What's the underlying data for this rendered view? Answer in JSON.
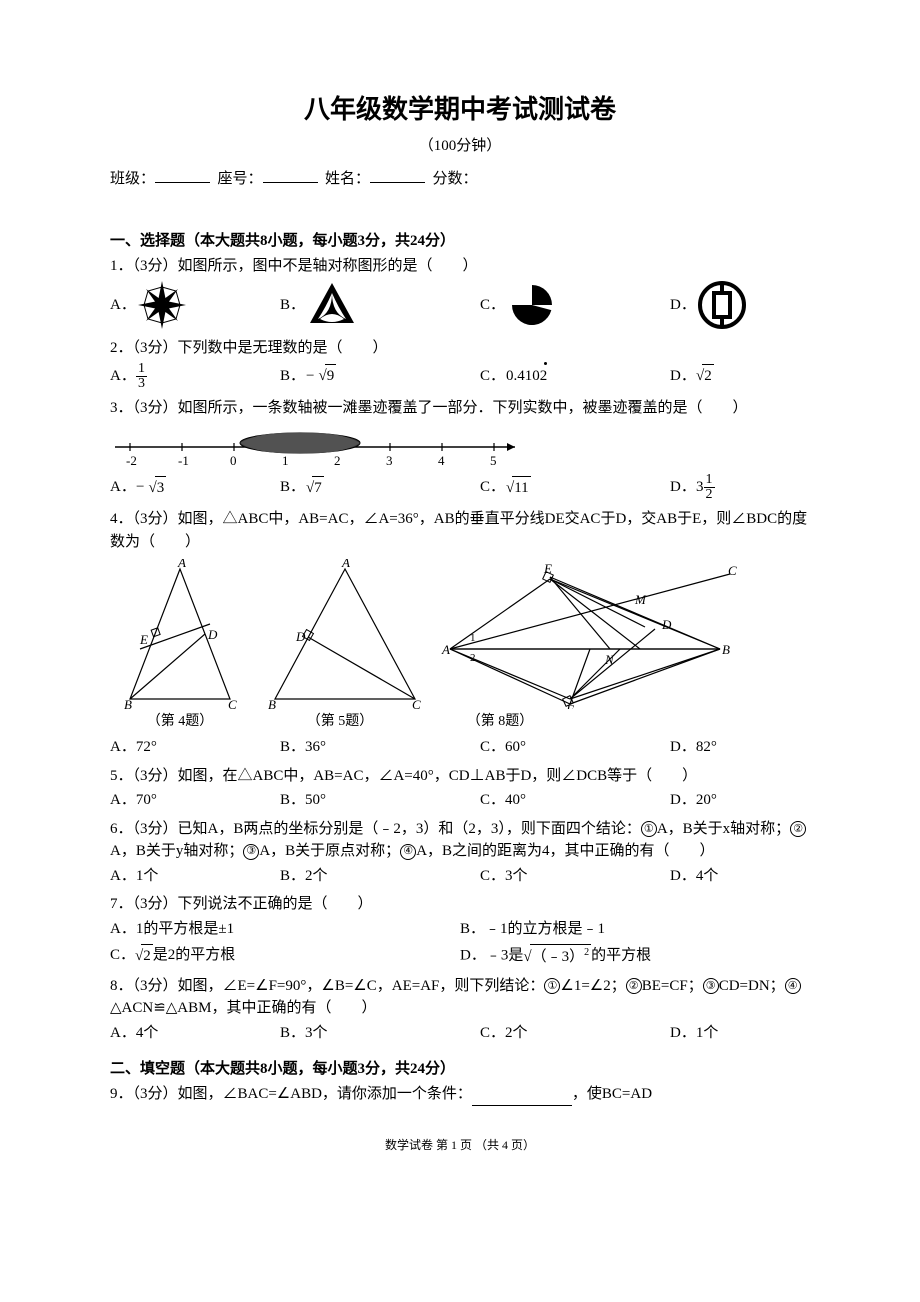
{
  "title": "八年级数学期中考试测试卷",
  "duration": "（100分钟）",
  "info_labels": {
    "class": "班级：",
    "seat": "座号：",
    "name": "姓名：",
    "score": "分数："
  },
  "section1": {
    "header": "一、选择题（本大题共8小题，每小题3分，共24分）",
    "q1": {
      "text": "1．（3分）如图所示，图中不是轴对称图形的是（　　）",
      "A": "A．",
      "B": "B．",
      "C": "C．",
      "D": "D．"
    },
    "q2": {
      "text": "2．（3分）下列数中是无理数的是（　　）",
      "A": "A．",
      "B": "B．",
      "C": "C．",
      "D": "D．",
      "optA": "1/3",
      "optB_pre": "−",
      "optB_rad": "9",
      "optC_pre": "0.410",
      "optC_rep": "2",
      "optD_rad": "2"
    },
    "q3": {
      "text": "3．（3分）如图所示，一条数轴被一滩墨迹覆盖了一部分．下列实数中，被墨迹覆盖的是（　　）",
      "ticks": [
        "-2",
        "-1",
        "0",
        "1",
        "2",
        "3",
        "4",
        "5"
      ],
      "A": "A．",
      "B": "B．",
      "C": "C．",
      "D": "D．",
      "optA_pre": "−",
      "optA_rad": "3",
      "optB_rad": "7",
      "optC_rad": "11",
      "optD_whole": "3",
      "optD_num": "1",
      "optD_den": "2"
    },
    "q4": {
      "text": "4．（3分）如图，△ABC中，AB=AC，∠A=36°，AB的垂直平分线DE交AC于D，交AB于E，则∠BDC的度数为（　　）",
      "figLabels": [
        "（第 4题）",
        "（第 5题）",
        "（第 8题）"
      ],
      "A": "A．72°",
      "B": "B．36°",
      "C": "C．60°",
      "D": "D．82°"
    },
    "q5": {
      "text": "5．（3分）如图，在△ABC中，AB=AC，∠A=40°，CD⊥AB于D，则∠DCB等于（　　）",
      "A": "A．70°",
      "B": "B．50°",
      "C": "C．40°",
      "D": "D．20°"
    },
    "q6": {
      "text_pre": "6．（3分）已知A，B两点的坐标分别是（﹣2，3）和（2，3），则下面四个结论：",
      "c1": "①",
      "c1t": "A，B关于x轴对称；",
      "c2": "②",
      "c2t": "A，B关于y轴对称；",
      "c3": "③",
      "c3t": "A，B关于原点对称；",
      "c4": "④",
      "c4t": "A，B之间的距离为4，其中正确的有（　　）",
      "A": "A．1个",
      "B": "B．2个",
      "C": "C．3个",
      "D": "D．4个"
    },
    "q7": {
      "text": "7．（3分）下列说法不正确的是（　　）",
      "A": "A．1的平方根是±1",
      "B": "B．﹣1的立方根是﹣1",
      "C_pre": "C．",
      "C_rad": "2",
      "C_post": "是2的平方根",
      "D_pre": "D．﹣3是",
      "D_rad": "（﹣3）",
      "D_sup": "2",
      "D_post": "的平方根"
    },
    "q8": {
      "text_pre": "8．（3分）如图，∠E=∠F=90°，∠B=∠C，AE=AF，则下列结论：",
      "c1": "①",
      "c1t": "∠1=∠2；",
      "c2": "②",
      "c2t": "BE=CF；",
      "c3": "③",
      "c3t": "CD=DN；",
      "c4": "④",
      "c4t": "△ACN≌△ABM，其中正确的有（　　）",
      "A": "A．4个",
      "B": "B．3个",
      "C": "C．2个",
      "D": "D．1个"
    }
  },
  "section2": {
    "header": "二、填空题（本大题共8小题，每小题3分，共24分）",
    "q9": {
      "pre": "9．（3分）如图，∠BAC=∠ABD，请你添加一个条件：",
      "post": "，使BC=AD"
    }
  },
  "footer": "数学试卷  第 1 页 （共 4 页）",
  "colors": {
    "fg": "#000000",
    "bg": "#ffffff",
    "ink": "#3a3a3a"
  }
}
